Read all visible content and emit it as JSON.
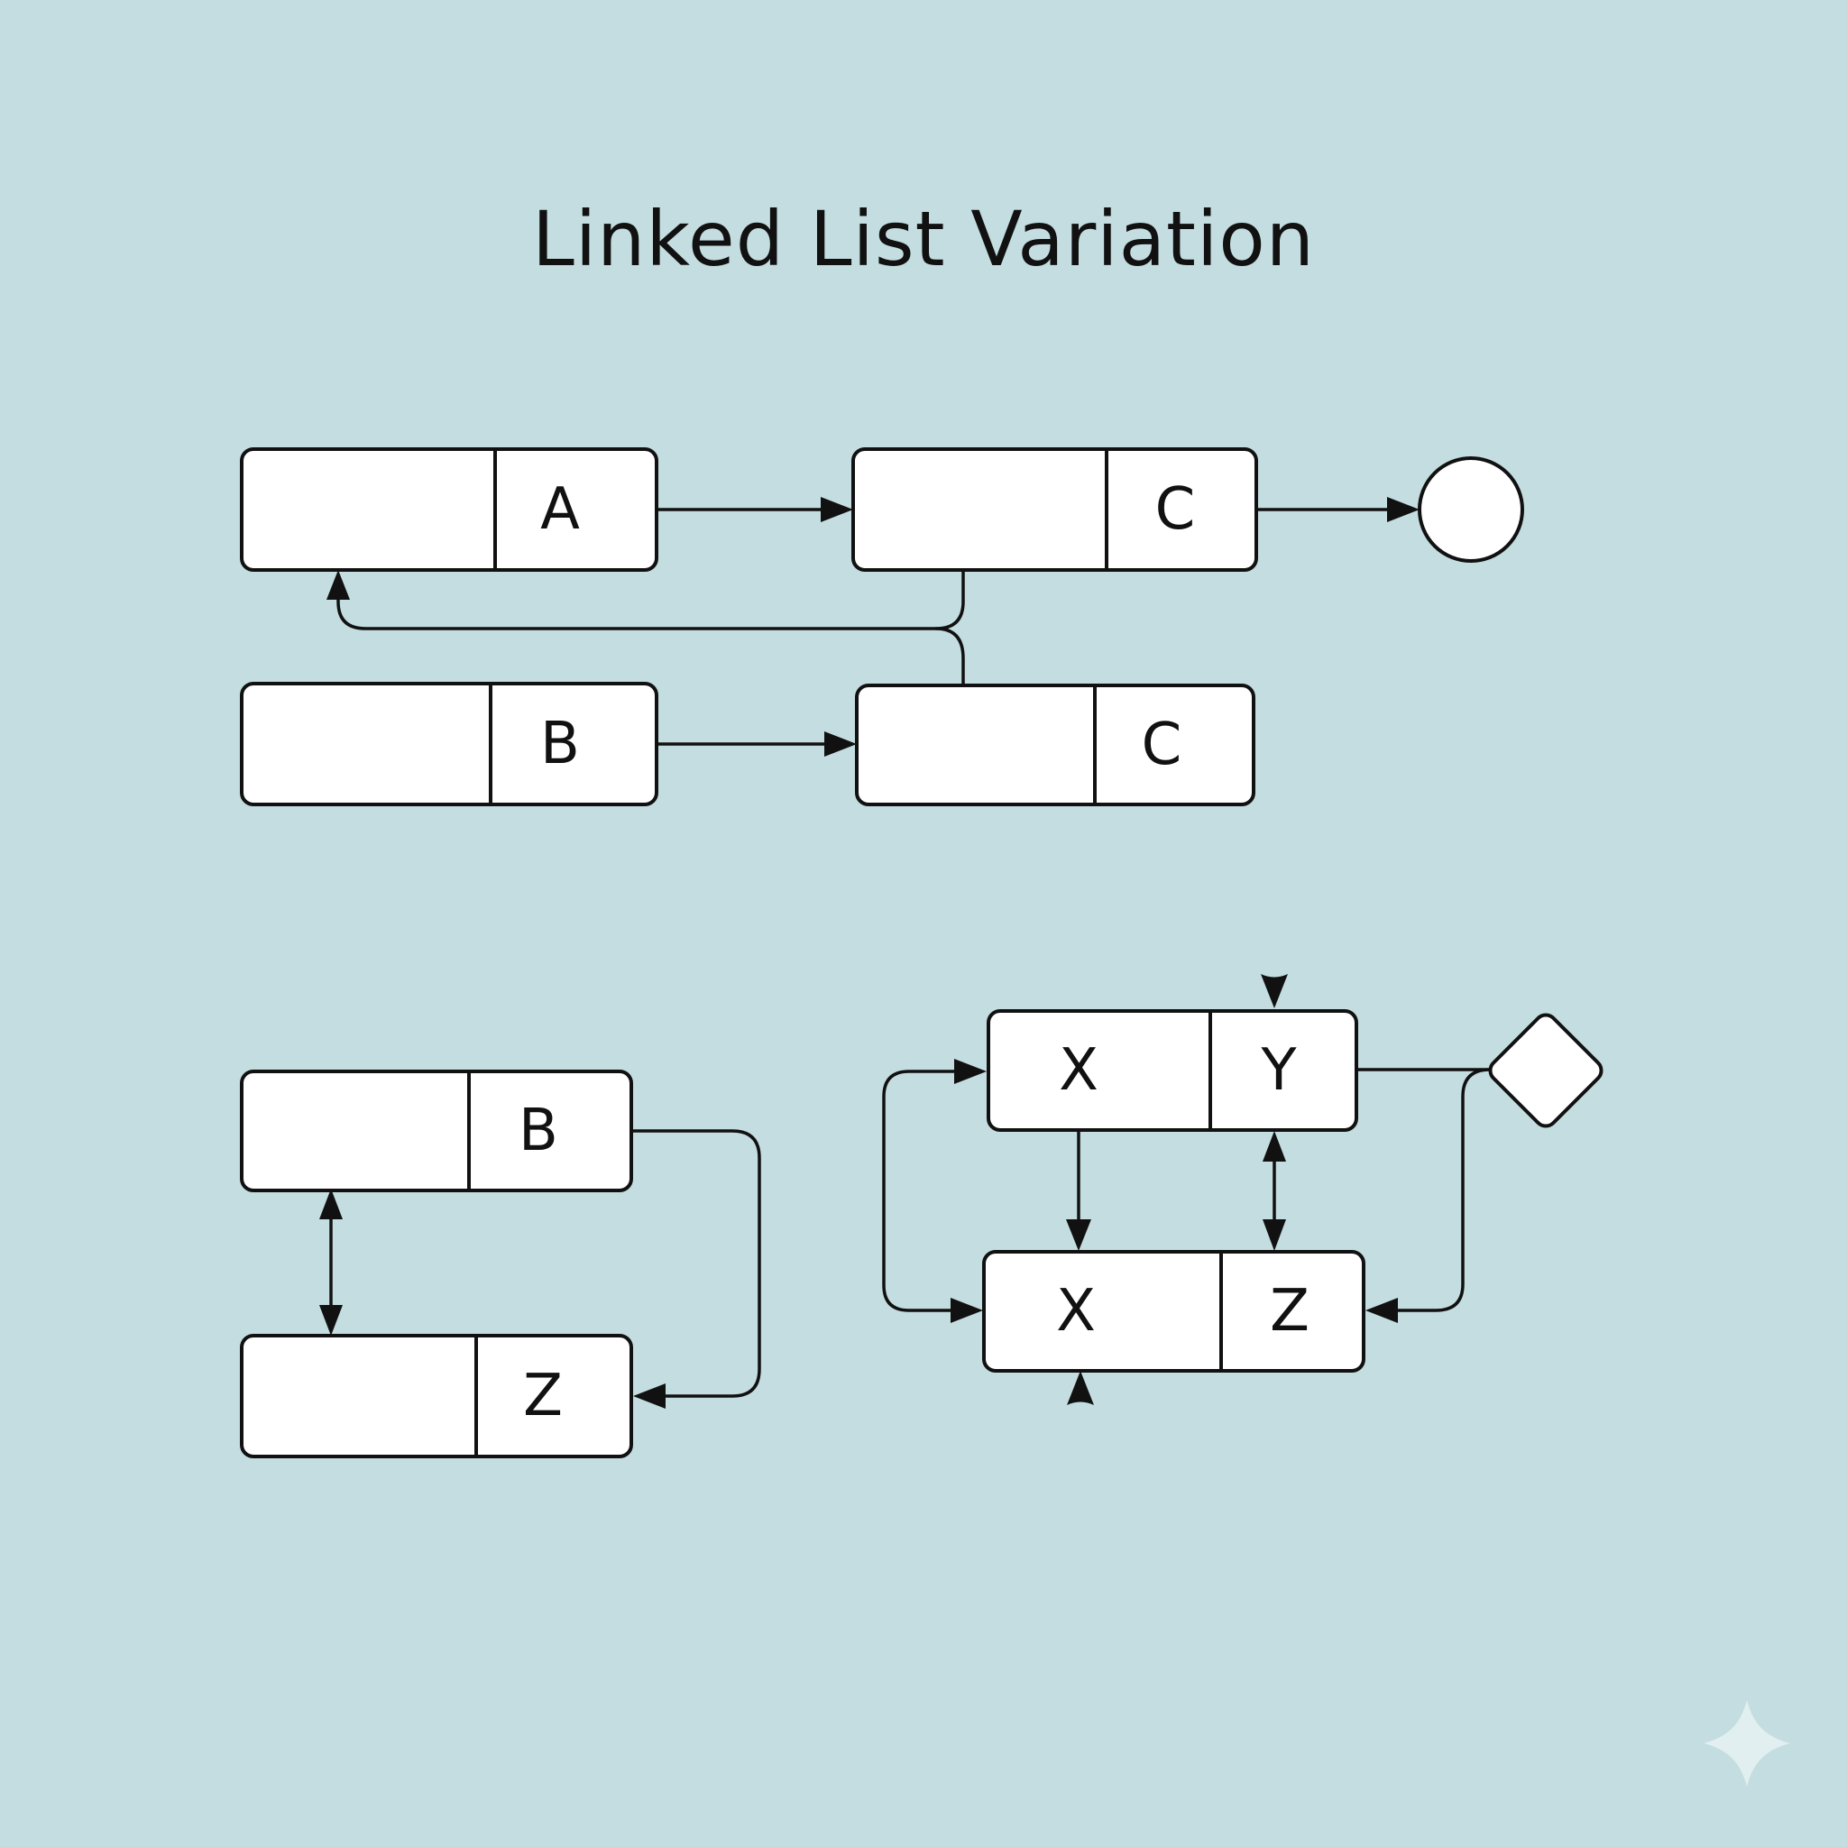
{
  "title": "Linked List Variation",
  "nodes": {
    "a": {
      "label": "A"
    },
    "c1": {
      "label": "C"
    },
    "b1": {
      "label": "B"
    },
    "c2": {
      "label": "C"
    },
    "b2": {
      "label": "B"
    },
    "z1": {
      "label": "Z"
    },
    "xy_left": {
      "label": "X"
    },
    "xy_right": {
      "label": "Y"
    },
    "xz_left": {
      "label": "X"
    },
    "xz_right": {
      "label": "Z"
    }
  },
  "colors": {
    "background": "#c4dde0",
    "node_fill": "#ffffff",
    "stroke": "#111111"
  }
}
